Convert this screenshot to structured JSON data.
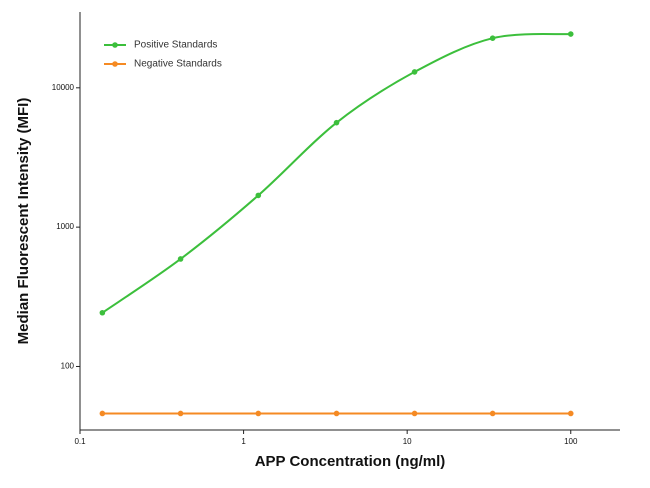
{
  "chart_data": {
    "type": "line",
    "log_x": true,
    "log_y": true,
    "smooth": true,
    "x_label": "APP Concentration (ng/ml)",
    "y_label": "Median  Fluorescent Intensity  (MFI)",
    "x": [
      0.137,
      0.412,
      1.23,
      3.7,
      11.1,
      33.3,
      100
    ],
    "series": [
      {
        "name": "Positive Standards",
        "color": "#3cbf3c",
        "values": [
          243,
          591,
          1690,
          5620,
          13000,
          22700,
          24300
        ]
      },
      {
        "name": "Negative Standards",
        "color": "#f58a23",
        "values": [
          46,
          46,
          46,
          46,
          46,
          46,
          46
        ]
      }
    ],
    "xlim": [
      0.1,
      200
    ],
    "xticks": [
      0.1,
      1,
      10,
      100
    ],
    "ylim": [
      35,
      35000
    ],
    "yticks": [
      100,
      1000,
      10000
    ],
    "legend": "upper-left"
  }
}
